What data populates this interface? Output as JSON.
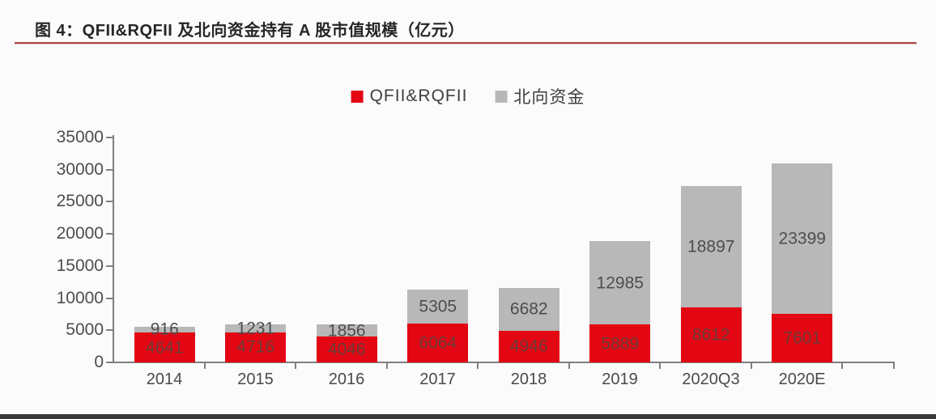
{
  "figure": {
    "title": "图 4：QFII&RQFII 及北向资金持有 A 股市值规模（亿元）",
    "colors": {
      "accent_rule": "#b04a47",
      "axis": "#7f7f7f",
      "bottom_bar": "#3a3a3a",
      "gray_label_text": "#4d4d4d",
      "red_label_text": "#6a3a36"
    }
  },
  "chart_data": {
    "type": "bar",
    "stacked": true,
    "title": "图 4：QFII&RQFII 及北向资金持有 A 股市值规模（亿元）",
    "xlabel": "",
    "ylabel": "",
    "categories": [
      "2014",
      "2015",
      "2016",
      "2017",
      "2018",
      "2019",
      "2020Q3",
      "2020E"
    ],
    "series": [
      {
        "name": "QFII&RQFII",
        "color": "#e30613",
        "label_color": "#6a3a36",
        "values": [
          4641,
          4716,
          4046,
          6064,
          4946,
          5889,
          8612,
          7601
        ]
      },
      {
        "name": "北向资金",
        "color": "#b8b8b8",
        "label_color": "#4d4d4d",
        "values": [
          916,
          1231,
          1856,
          5305,
          6682,
          12985,
          18897,
          23399
        ]
      }
    ],
    "ylim": [
      0,
      35000
    ],
    "yticks": [
      0,
      5000,
      10000,
      15000,
      20000,
      25000,
      30000,
      35000
    ],
    "grid": false,
    "legend_position": "top",
    "data_labels": true
  }
}
